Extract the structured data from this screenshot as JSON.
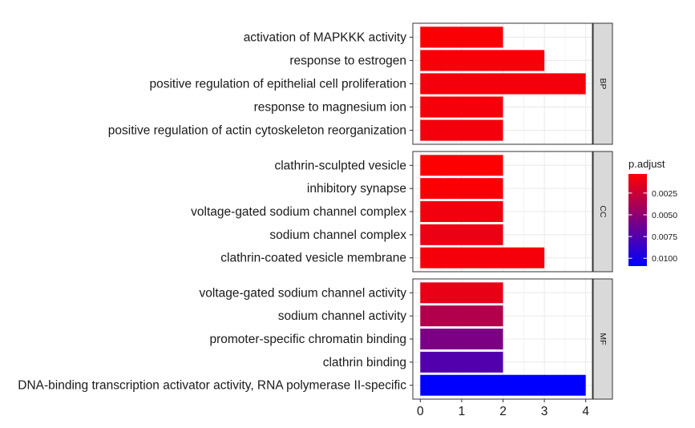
{
  "chart_data": {
    "type": "bar",
    "orientation": "horizontal",
    "xlim": [
      0,
      4
    ],
    "x_ticks": [
      "0",
      "1",
      "2",
      "3",
      "4"
    ],
    "grid": true,
    "legend": {
      "title": "p.adjust",
      "placement": "right",
      "ticks": [
        {
          "label": "0.0025",
          "value": 0.0025
        },
        {
          "label": "0.0050",
          "value": 0.005
        },
        {
          "label": "0.0075",
          "value": 0.0075
        },
        {
          "label": "0.0100",
          "value": 0.01
        }
      ],
      "range": [
        0.0003,
        0.0109
      ],
      "color_low": "#ff0000",
      "color_high": "#0000ff"
    },
    "facets": [
      {
        "label": "BP",
        "bars": [
          {
            "term": "activation of MAPKKK activity",
            "count": 2,
            "p_adjust": 0.0005
          },
          {
            "term": "response to estrogen",
            "count": 3,
            "p_adjust": 0.0006
          },
          {
            "term": "positive regulation of epithelial cell proliferation",
            "count": 4,
            "p_adjust": 0.0008
          },
          {
            "term": "response to magnesium ion",
            "count": 2,
            "p_adjust": 0.0007
          },
          {
            "term": "positive regulation of actin cytoskeleton reorganization",
            "count": 2,
            "p_adjust": 0.0008
          }
        ]
      },
      {
        "label": "CC",
        "bars": [
          {
            "term": "clathrin-sculpted vesicle",
            "count": 2,
            "p_adjust": 0.0004
          },
          {
            "term": "inhibitory synapse",
            "count": 2,
            "p_adjust": 0.0005
          },
          {
            "term": "voltage-gated sodium channel complex",
            "count": 2,
            "p_adjust": 0.0009
          },
          {
            "term": "sodium channel complex",
            "count": 2,
            "p_adjust": 0.0011
          },
          {
            "term": "clathrin-coated vesicle membrane",
            "count": 3,
            "p_adjust": 0.0007
          }
        ]
      },
      {
        "label": "MF",
        "bars": [
          {
            "term": "voltage-gated sodium channel activity",
            "count": 2,
            "p_adjust": 0.0012
          },
          {
            "term": "sodium channel activity",
            "count": 2,
            "p_adjust": 0.0035
          },
          {
            "term": "promoter-specific chromatin binding",
            "count": 2,
            "p_adjust": 0.0058
          },
          {
            "term": "clathrin binding",
            "count": 2,
            "p_adjust": 0.0075
          },
          {
            "term": "DNA-binding transcription activator activity, RNA polymerase II-specific",
            "count": 4,
            "p_adjust": 0.0109
          }
        ]
      }
    ]
  }
}
